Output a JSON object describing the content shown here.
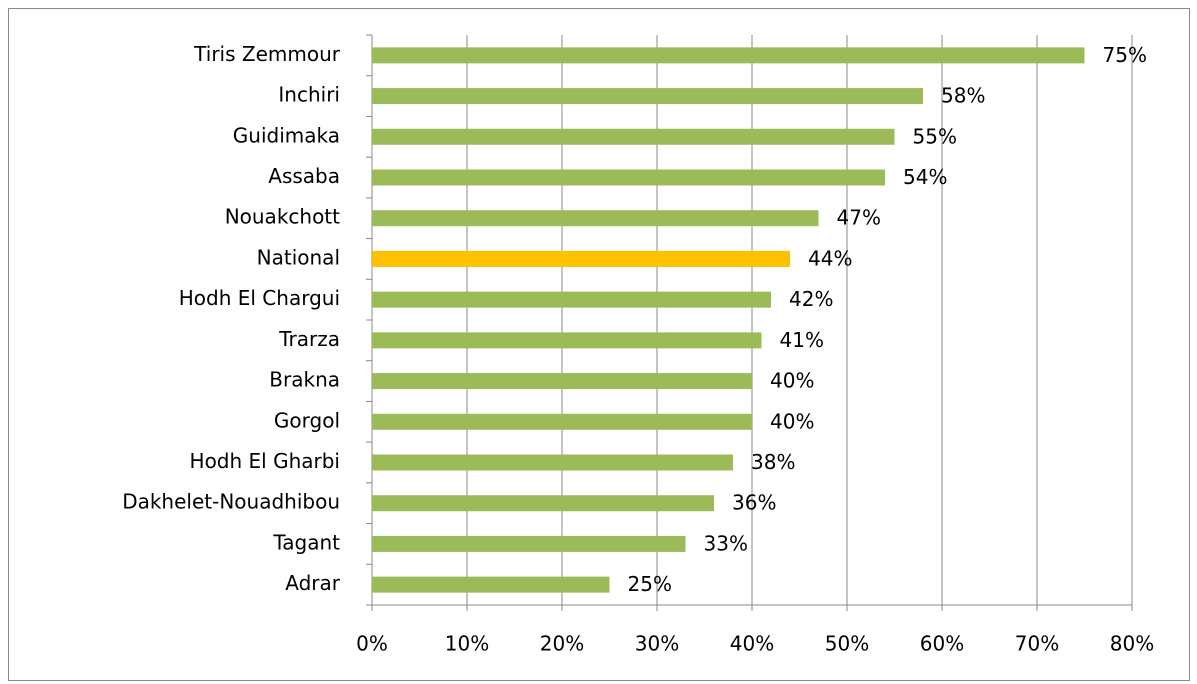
{
  "chart_data": {
    "type": "bar",
    "orientation": "horizontal",
    "categories": [
      "Tiris Zemmour",
      "Inchiri",
      "Guidimaka",
      "Assaba",
      "Nouakchott",
      "National",
      "Hodh El Chargui",
      "Trarza",
      "Brakna",
      "Gorgol",
      "Hodh El Gharbi",
      "Dakhelet-Nouadhibou",
      "Tagant",
      "Adrar"
    ],
    "values": [
      75,
      58,
      55,
      54,
      47,
      44,
      42,
      41,
      40,
      40,
      38,
      36,
      33,
      25
    ],
    "value_labels": [
      "75%",
      "58%",
      "55%",
      "54%",
      "47%",
      "44%",
      "42%",
      "41%",
      "40%",
      "40%",
      "38%",
      "36%",
      "33%",
      "25%"
    ],
    "colors": [
      "#9bbb59",
      "#9bbb59",
      "#9bbb59",
      "#9bbb59",
      "#9bbb59",
      "#ffc000",
      "#9bbb59",
      "#9bbb59",
      "#9bbb59",
      "#9bbb59",
      "#9bbb59",
      "#9bbb59",
      "#9bbb59",
      "#9bbb59"
    ],
    "xlim": [
      0,
      80
    ],
    "xticks": [
      {
        "value": 0,
        "label": "0%"
      },
      {
        "value": 10,
        "label": "10%"
      },
      {
        "value": 20,
        "label": "20%"
      },
      {
        "value": 30,
        "label": "30%"
      },
      {
        "value": 40,
        "label": "40%"
      },
      {
        "value": 50,
        "label": "50%"
      },
      {
        "value": 60,
        "label": "60%"
      },
      {
        "value": 70,
        "label": "70%"
      },
      {
        "value": 80,
        "label": "80%"
      }
    ],
    "grid": true
  }
}
